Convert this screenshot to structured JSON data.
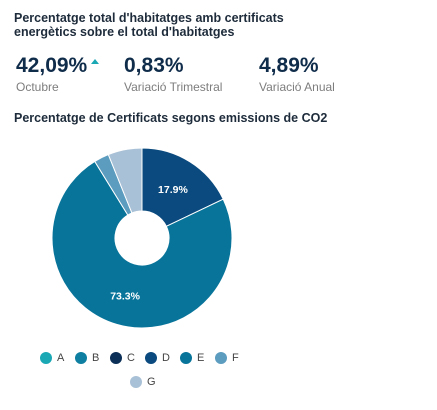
{
  "header": {
    "title": "Percentatge total d'habitatges amb certificats energètics sobre el total d'habitatges"
  },
  "kpis": [
    {
      "value": "42,09%",
      "label": "Octubre",
      "trend": "up"
    },
    {
      "value": "0,83%",
      "label": "Variació Trimestral"
    },
    {
      "value": "4,89%",
      "label": "Variació Anual"
    }
  ],
  "colors": {
    "accent_arrow": "#1aa8b5"
  },
  "chart_data": {
    "type": "pie",
    "title": "Percentatge de Certificats segons emissions de CO2",
    "donut": true,
    "categories": [
      "A",
      "B",
      "C",
      "D",
      "E",
      "F",
      "G"
    ],
    "values": [
      0,
      0,
      0,
      17.9,
      73.3,
      2.7,
      6.1
    ],
    "data_labels": [
      "",
      "",
      "",
      "17.9%",
      "73.3%",
      "",
      ""
    ],
    "colors": [
      "#1aa8b5",
      "#0e7fa0",
      "#0b2f57",
      "#0a4a7e",
      "#08749a",
      "#5b9cbf",
      "#a9c1d6"
    ],
    "legend_position": "bottom"
  }
}
